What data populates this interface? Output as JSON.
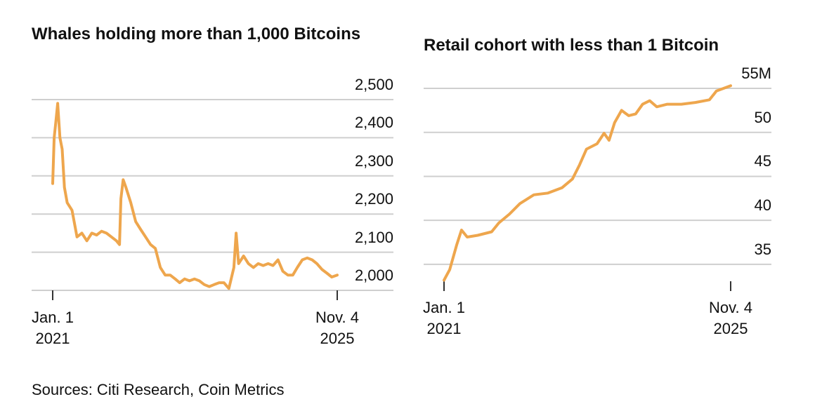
{
  "chart_data": [
    {
      "type": "line",
      "title": "Whales holding more than 1,000 Bitcoins",
      "x": [
        "2021-01-01",
        "2021-01-10",
        "2021-01-20",
        "2021-02-01",
        "2021-02-15",
        "2021-03-01",
        "2021-03-15",
        "2021-04-01",
        "2021-05-01",
        "2021-06-01",
        "2021-07-01",
        "2021-08-01",
        "2021-09-01",
        "2021-10-01",
        "2021-11-01",
        "2021-12-01",
        "2022-01-01",
        "2022-02-01",
        "2022-02-20",
        "2022-03-01",
        "2022-03-15",
        "2022-04-01",
        "2022-05-01",
        "2022-06-01",
        "2022-07-01",
        "2022-08-01",
        "2022-09-01",
        "2022-10-01",
        "2022-11-01",
        "2022-12-01",
        "2023-01-01",
        "2023-02-01",
        "2023-03-01",
        "2023-04-01",
        "2023-05-01",
        "2023-06-01",
        "2023-07-01",
        "2023-08-01",
        "2023-09-01",
        "2023-10-01",
        "2023-11-01",
        "2023-12-01",
        "2024-01-01",
        "2024-02-01",
        "2024-02-15",
        "2024-03-01",
        "2024-04-01",
        "2024-05-01",
        "2024-06-01",
        "2024-07-01",
        "2024-08-01",
        "2024-09-01",
        "2024-10-01",
        "2024-11-01",
        "2024-12-01",
        "2025-01-01",
        "2025-02-01",
        "2025-03-01",
        "2025-04-01",
        "2025-05-01",
        "2025-06-01",
        "2025-07-01",
        "2025-08-01",
        "2025-09-01",
        "2025-10-01",
        "2025-11-04"
      ],
      "series": [
        {
          "name": "Whales",
          "color": "#eea64d",
          "values": [
            2280,
            2400,
            2440,
            2490,
            2400,
            2370,
            2270,
            2230,
            2210,
            2140,
            2150,
            2130,
            2150,
            2145,
            2155,
            2150,
            2140,
            2130,
            2120,
            2240,
            2290,
            2270,
            2230,
            2180,
            2160,
            2140,
            2120,
            2110,
            2060,
            2040,
            2040,
            2030,
            2020,
            2030,
            2025,
            2030,
            2025,
            2015,
            2010,
            2015,
            2020,
            2020,
            2005,
            2060,
            2150,
            2070,
            2090,
            2070,
            2060,
            2070,
            2065,
            2070,
            2065,
            2080,
            2050,
            2040,
            2040,
            2060,
            2080,
            2085,
            2080,
            2070,
            2055,
            2045,
            2035,
            2040
          ]
        }
      ],
      "xlim": [
        "2021-01-01",
        "2025-11-04"
      ],
      "xticks": [
        {
          "value": "2021-01-01",
          "label": "Jan. 1\n2021"
        },
        {
          "value": "2025-11-04",
          "label": "Nov. 4\n2025"
        }
      ],
      "ylim": [
        2000,
        2500
      ],
      "yticks": [
        {
          "value": 2000,
          "label": "2,000"
        },
        {
          "value": 2100,
          "label": "2,100"
        },
        {
          "value": 2200,
          "label": "2,200"
        },
        {
          "value": 2300,
          "label": "2,300"
        },
        {
          "value": 2400,
          "label": "2,400"
        },
        {
          "value": 2500,
          "label": "2,500"
        }
      ],
      "grid": true
    },
    {
      "type": "line",
      "title": "Retail cohort with less than 1 Bitcoin",
      "x": [
        "2021-01-01",
        "2021-02-05",
        "2021-03-20",
        "2021-04-19",
        "2021-05-24",
        "2021-07-28",
        "2021-10-22",
        "2021-12-05",
        "2022-02-08",
        "2022-04-14",
        "2022-07-09",
        "2022-10-04",
        "2022-12-29",
        "2023-03-04",
        "2023-04-17",
        "2023-05-30",
        "2023-08-03",
        "2023-09-15",
        "2023-10-16",
        "2023-11-19",
        "2024-01-01",
        "2024-02-14",
        "2024-03-28",
        "2024-05-10",
        "2024-06-23",
        "2024-08-05",
        "2024-10-09",
        "2025-01-04",
        "2025-03-31",
        "2025-06-26",
        "2025-08-08",
        "2025-11-04"
      ],
      "series": [
        {
          "name": "Retail",
          "color": "#eea64d",
          "values": [
            33.2,
            34.4,
            37.2,
            38.9,
            38.1,
            38.3,
            38.7,
            39.7,
            40.7,
            41.9,
            42.9,
            43.1,
            43.7,
            44.7,
            46.3,
            48.1,
            48.7,
            49.9,
            49.1,
            51.1,
            52.5,
            51.9,
            52.1,
            53.2,
            53.6,
            52.9,
            53.2,
            53.2,
            53.4,
            53.7,
            54.7,
            55.3
          ]
        }
      ],
      "xlim": [
        "2021-01-01",
        "2025-11-04"
      ],
      "xticks": [
        {
          "value": "2021-01-01",
          "label": "Jan. 1\n2021"
        },
        {
          "value": "2025-11-04",
          "label": "Nov. 4\n2025"
        }
      ],
      "ylim": [
        33,
        55
      ],
      "yticks": [
        35,
        40,
        45,
        50,
        {
          "value": 55,
          "label": "55M"
        }
      ],
      "grid": true
    }
  ],
  "source": "Sources: Citi Research, Coin Metrics"
}
